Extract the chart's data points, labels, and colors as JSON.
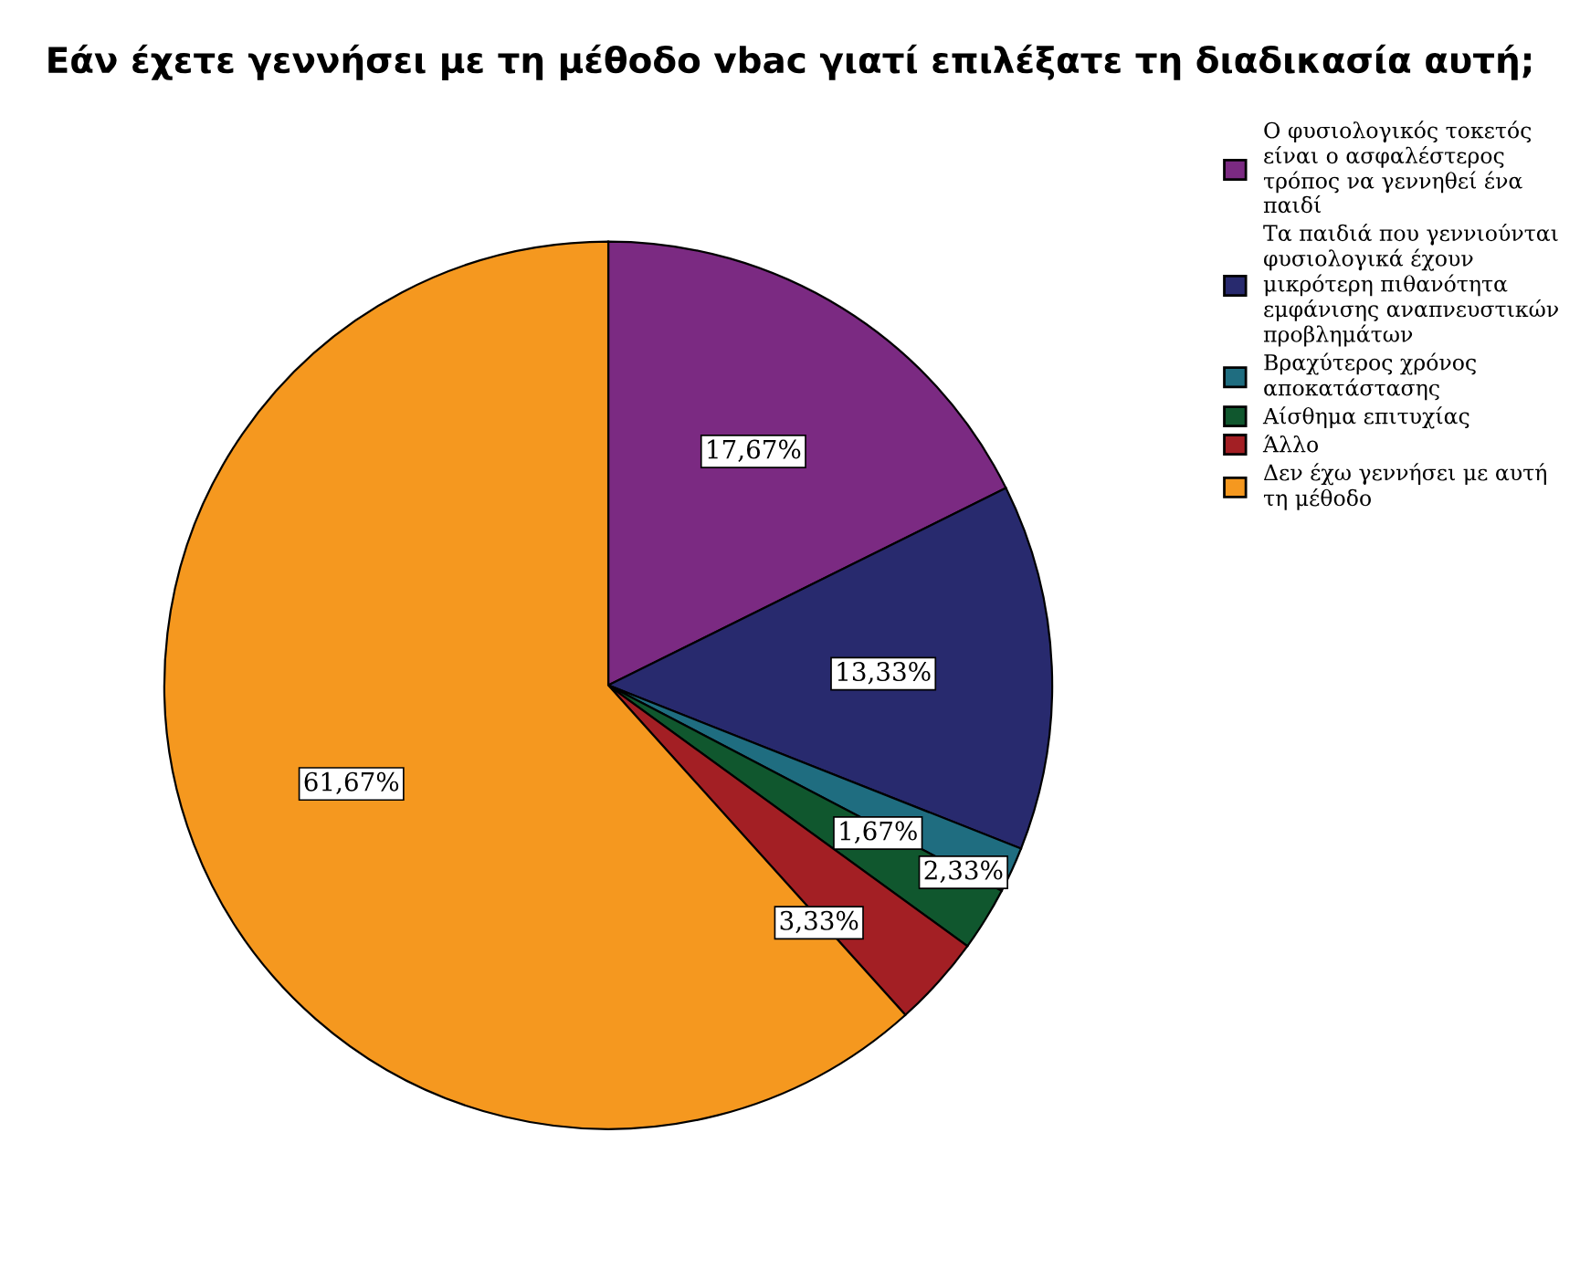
{
  "chart_data": {
    "type": "pie",
    "title": "Εάν έχετε γεννήσει με τη μέθοδο vbac γιατί επιλέξατε τη διαδικασία αυτή;",
    "categories": [
      "Ο φυσιολογικός τοκετός είναι ο ασφαλέστερος τρόπος να γεννηθεί ένα παιδί",
      "Τα παιδιά που γεννιούνται φυσιολογικά έχουν μικρότερη πιθανότητα εμφάνισης αναπνευστικών προβλημάτων",
      "Βραχύτερος χρόνος αποκατάστασης",
      "Αίσθημα επιτυχίας",
      "Άλλο",
      "Δεν έχω γεννήσει με αυτή τη μέθοδο"
    ],
    "values": [
      17.67,
      13.33,
      1.67,
      2.33,
      3.33,
      61.67
    ],
    "colors": [
      "#7b2a82",
      "#282a6e",
      "#1f6d80",
      "#10572e",
      "#a31f24",
      "#f5981f"
    ],
    "value_labels": [
      "17,67%",
      "13,33%",
      "1,67%",
      "2,33%",
      "3,33%",
      "61,67%"
    ],
    "legend": "top right"
  }
}
